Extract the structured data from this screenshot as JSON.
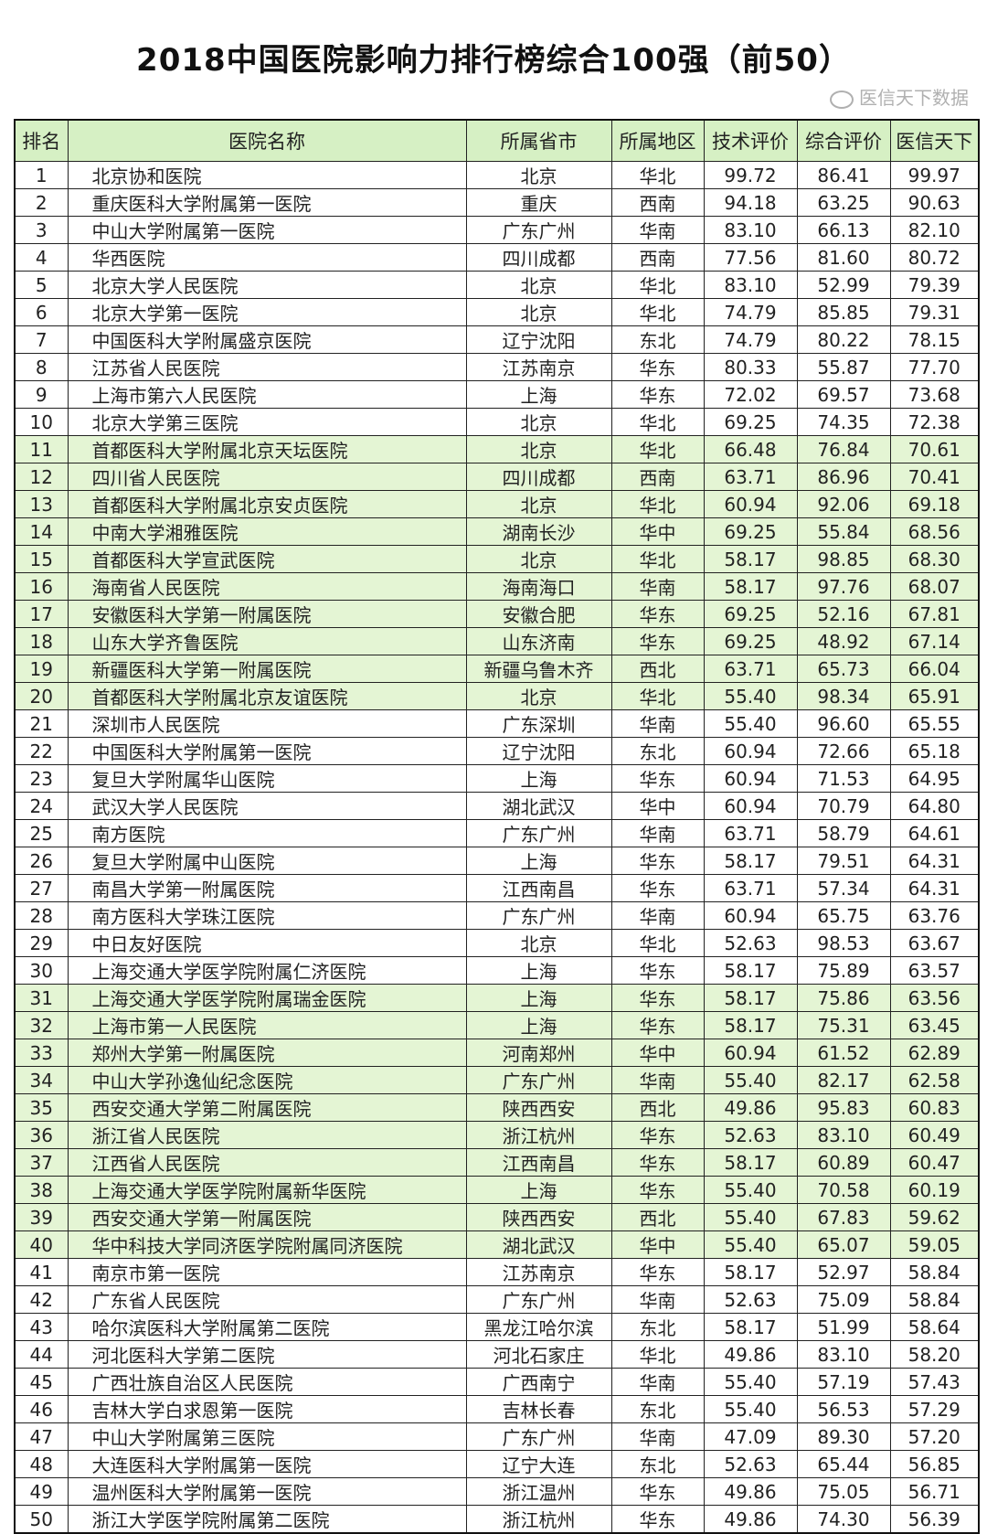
{
  "title": "2018中国医院影响力排行榜综合100强（前50）",
  "columns": [
    "排名",
    "医院名称",
    "所属省市",
    "所属地区",
    "技术评价",
    "综合评价",
    "医信天下"
  ],
  "highlight_color": "#e4f5d4",
  "header_color": "#d6f0c4",
  "highlighted_ranks": [
    11,
    12,
    13,
    14,
    15,
    16,
    17,
    18,
    19,
    20,
    31,
    32,
    33,
    34,
    35,
    36,
    37,
    38,
    39,
    40
  ],
  "rows": [
    [
      "1",
      "北京协和医院",
      "北京",
      "华北",
      "99.72",
      "86.41",
      "99.97"
    ],
    [
      "2",
      "重庆医科大学附属第一医院",
      "重庆",
      "西南",
      "94.18",
      "63.25",
      "90.63"
    ],
    [
      "3",
      "中山大学附属第一医院",
      "广东广州",
      "华南",
      "83.10",
      "66.13",
      "82.10"
    ],
    [
      "4",
      "华西医院",
      "四川成都",
      "西南",
      "77.56",
      "81.60",
      "80.72"
    ],
    [
      "5",
      "北京大学人民医院",
      "北京",
      "华北",
      "83.10",
      "52.99",
      "79.39"
    ],
    [
      "6",
      "北京大学第一医院",
      "北京",
      "华北",
      "74.79",
      "85.85",
      "79.31"
    ],
    [
      "7",
      "中国医科大学附属盛京医院",
      "辽宁沈阳",
      "东北",
      "74.79",
      "80.22",
      "78.15"
    ],
    [
      "8",
      "江苏省人民医院",
      "江苏南京",
      "华东",
      "80.33",
      "55.87",
      "77.70"
    ],
    [
      "9",
      "上海市第六人民医院",
      "上海",
      "华东",
      "72.02",
      "69.57",
      "73.68"
    ],
    [
      "10",
      "北京大学第三医院",
      "北京",
      "华北",
      "69.25",
      "74.35",
      "72.38"
    ],
    [
      "11",
      "首都医科大学附属北京天坛医院",
      "北京",
      "华北",
      "66.48",
      "76.84",
      "70.61"
    ],
    [
      "12",
      "四川省人民医院",
      "四川成都",
      "西南",
      "63.71",
      "86.96",
      "70.41"
    ],
    [
      "13",
      "首都医科大学附属北京安贞医院",
      "北京",
      "华北",
      "60.94",
      "92.06",
      "69.18"
    ],
    [
      "14",
      "中南大学湘雅医院",
      "湖南长沙",
      "华中",
      "69.25",
      "55.84",
      "68.56"
    ],
    [
      "15",
      "首都医科大学宣武医院",
      "北京",
      "华北",
      "58.17",
      "98.85",
      "68.30"
    ],
    [
      "16",
      "海南省人民医院",
      "海南海口",
      "华南",
      "58.17",
      "97.76",
      "68.07"
    ],
    [
      "17",
      "安徽医科大学第一附属医院",
      "安徽合肥",
      "华东",
      "69.25",
      "52.16",
      "67.81"
    ],
    [
      "18",
      "山东大学齐鲁医院",
      "山东济南",
      "华东",
      "69.25",
      "48.92",
      "67.14"
    ],
    [
      "19",
      "新疆医科大学第一附属医院",
      "新疆乌鲁木齐",
      "西北",
      "63.71",
      "65.73",
      "66.04"
    ],
    [
      "20",
      "首都医科大学附属北京友谊医院",
      "北京",
      "华北",
      "55.40",
      "98.34",
      "65.91"
    ],
    [
      "21",
      "深圳市人民医院",
      "广东深圳",
      "华南",
      "55.40",
      "96.60",
      "65.55"
    ],
    [
      "22",
      "中国医科大学附属第一医院",
      "辽宁沈阳",
      "东北",
      "60.94",
      "72.66",
      "65.18"
    ],
    [
      "23",
      "复旦大学附属华山医院",
      "上海",
      "华东",
      "60.94",
      "71.53",
      "64.95"
    ],
    [
      "24",
      "武汉大学人民医院",
      "湖北武汉",
      "华中",
      "60.94",
      "70.79",
      "64.80"
    ],
    [
      "25",
      "南方医院",
      "广东广州",
      "华南",
      "63.71",
      "58.79",
      "64.61"
    ],
    [
      "26",
      "复旦大学附属中山医院",
      "上海",
      "华东",
      "58.17",
      "79.51",
      "64.31"
    ],
    [
      "27",
      "南昌大学第一附属医院",
      "江西南昌",
      "华东",
      "63.71",
      "57.34",
      "64.31"
    ],
    [
      "28",
      "南方医科大学珠江医院",
      "广东广州",
      "华南",
      "60.94",
      "65.75",
      "63.76"
    ],
    [
      "29",
      "中日友好医院",
      "北京",
      "华北",
      "52.63",
      "98.53",
      "63.67"
    ],
    [
      "30",
      "上海交通大学医学院附属仁济医院",
      "上海",
      "华东",
      "58.17",
      "75.89",
      "63.57"
    ],
    [
      "31",
      "上海交通大学医学院附属瑞金医院",
      "上海",
      "华东",
      "58.17",
      "75.86",
      "63.56"
    ],
    [
      "32",
      "上海市第一人民医院",
      "上海",
      "华东",
      "58.17",
      "75.31",
      "63.45"
    ],
    [
      "33",
      "郑州大学第一附属医院",
      "河南郑州",
      "华中",
      "60.94",
      "61.52",
      "62.89"
    ],
    [
      "34",
      "中山大学孙逸仙纪念医院",
      "广东广州",
      "华南",
      "55.40",
      "82.17",
      "62.58"
    ],
    [
      "35",
      "西安交通大学第二附属医院",
      "陕西西安",
      "西北",
      "49.86",
      "95.83",
      "60.83"
    ],
    [
      "36",
      "浙江省人民医院",
      "浙江杭州",
      "华东",
      "52.63",
      "83.10",
      "60.49"
    ],
    [
      "37",
      "江西省人民医院",
      "江西南昌",
      "华东",
      "58.17",
      "60.89",
      "60.47"
    ],
    [
      "38",
      "上海交通大学医学院附属新华医院",
      "上海",
      "华东",
      "55.40",
      "70.58",
      "60.19"
    ],
    [
      "39",
      "西安交通大学第一附属医院",
      "陕西西安",
      "西北",
      "55.40",
      "67.83",
      "59.62"
    ],
    [
      "40",
      "华中科技大学同济医学院附属同济医院",
      "湖北武汉",
      "华中",
      "55.40",
      "65.07",
      "59.05"
    ],
    [
      "41",
      "南京市第一医院",
      "江苏南京",
      "华东",
      "58.17",
      "52.97",
      "58.84"
    ],
    [
      "42",
      "广东省人民医院",
      "广东广州",
      "华南",
      "52.63",
      "75.09",
      "58.84"
    ],
    [
      "43",
      "哈尔滨医科大学附属第二医院",
      "黑龙江哈尔滨",
      "东北",
      "58.17",
      "51.99",
      "58.64"
    ],
    [
      "44",
      "河北医科大学第二医院",
      "河北石家庄",
      "华北",
      "49.86",
      "83.10",
      "58.20"
    ],
    [
      "45",
      "广西壮族自治区人民医院",
      "广西南宁",
      "华南",
      "55.40",
      "57.19",
      "57.43"
    ],
    [
      "46",
      "吉林大学白求恩第一医院",
      "吉林长春",
      "东北",
      "55.40",
      "56.53",
      "57.29"
    ],
    [
      "47",
      "中山大学附属第三医院",
      "广东广州",
      "华南",
      "47.09",
      "89.30",
      "57.20"
    ],
    [
      "48",
      "大连医科大学附属第一医院",
      "辽宁大连",
      "东北",
      "52.63",
      "65.44",
      "56.85"
    ],
    [
      "49",
      "温州医科大学附属第一医院",
      "浙江温州",
      "华东",
      "49.86",
      "75.05",
      "56.71"
    ],
    [
      "50",
      "浙江大学医学院附属第二医院",
      "浙江杭州",
      "华东",
      "49.86",
      "74.30",
      "56.39"
    ]
  ],
  "watermark": "医信天下数据"
}
